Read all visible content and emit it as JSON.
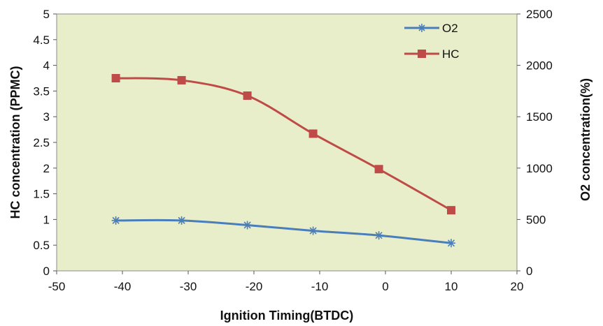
{
  "chart_data": {
    "type": "line",
    "title": "",
    "xlabel": "Ignition Timing(BTDC)",
    "ylabel_left": "HC concentration  (PPMC)",
    "ylabel_right": "O2 concentration(%)",
    "xlim": [
      -50,
      20
    ],
    "ylim_left": [
      0,
      5
    ],
    "ylim_right": [
      0,
      2500
    ],
    "x_ticks": [
      "-50",
      "-40",
      "-30",
      "-20",
      "-10",
      "0",
      "10",
      "20"
    ],
    "y_ticks_left": [
      "0",
      "0.5",
      "1",
      "1.5",
      "2",
      "2.5",
      "3",
      "3.5",
      "4",
      "4.5",
      "5"
    ],
    "y_ticks_right": [
      "0",
      "500",
      "1000",
      "1500",
      "2000",
      "2500"
    ],
    "legend_position": "top-right",
    "grid": false,
    "background_color": "#e8eec9",
    "series": [
      {
        "name": "O2",
        "axis": "left",
        "color": "#4a7ebb",
        "marker": "asterisk",
        "x": [
          -41,
          -31,
          -21,
          -11,
          -1,
          10
        ],
        "y": [
          0.98,
          0.98,
          0.89,
          0.78,
          0.69,
          0.54
        ]
      },
      {
        "name": "HC",
        "axis": "left",
        "color": "#be4b48",
        "marker": "square",
        "x": [
          -41,
          -31,
          -21,
          -11,
          -1,
          10
        ],
        "y": [
          3.75,
          3.71,
          3.41,
          2.67,
          1.98,
          1.18
        ]
      }
    ]
  }
}
